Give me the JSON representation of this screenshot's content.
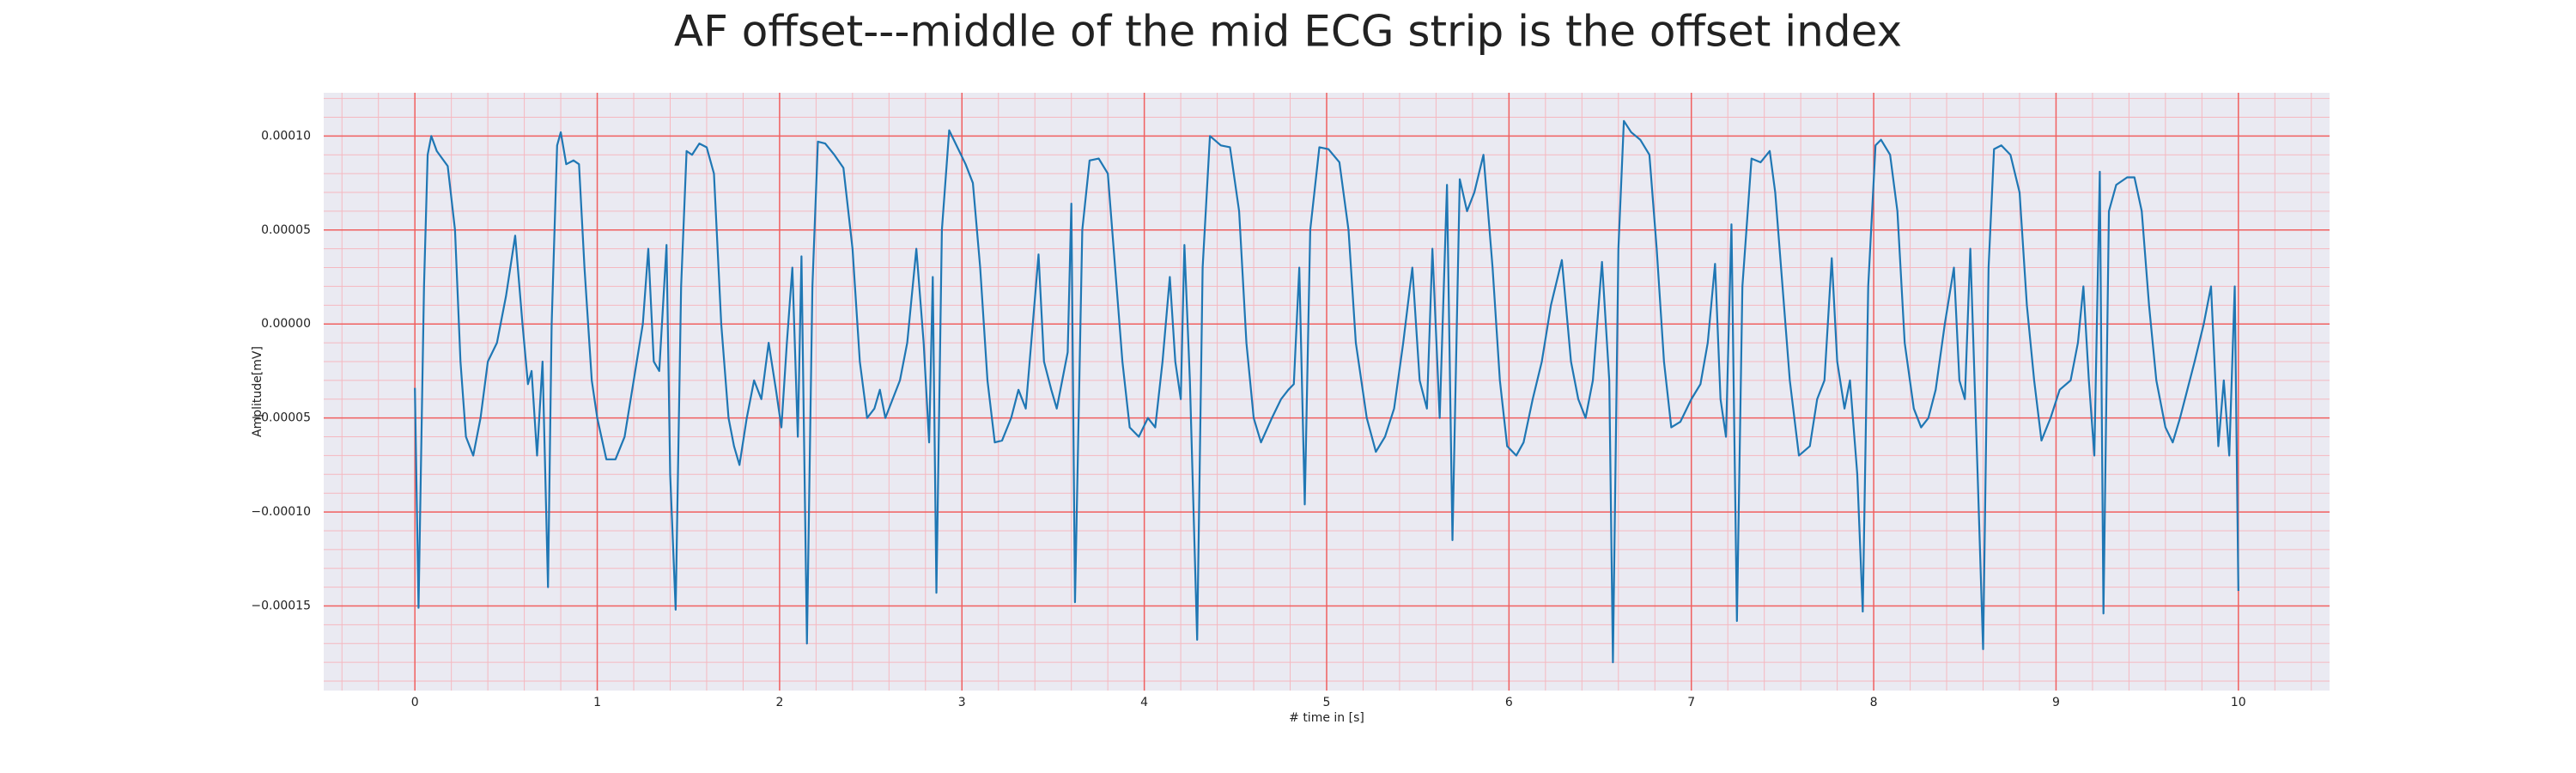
{
  "chart_data": {
    "type": "line",
    "title": "AF offset---middle of the mid ECG strip is the offset index",
    "xlabel": "# time in [s]",
    "ylabel": "Amplitude[mV]",
    "color": "#1f77b4",
    "grid": true,
    "minor_grid": true,
    "xlim": [
      -0.5,
      10.5
    ],
    "ylim": [
      -0.000195,
      0.000123
    ],
    "xticks": [
      0,
      1,
      2,
      3,
      4,
      5,
      6,
      7,
      8,
      9,
      10
    ],
    "yticks": [
      {
        "value": -0.00015,
        "label": "−0.00015"
      },
      {
        "value": -0.0001,
        "label": "−0.00010"
      },
      {
        "value": -5e-05,
        "label": "−0.00005"
      },
      {
        "value": 0,
        "label": "0.00000"
      },
      {
        "value": 5e-05,
        "label": "0.00005"
      },
      {
        "value": 0.0001,
        "label": "0.00010"
      }
    ],
    "x": [
      0,
      0.02,
      0.05,
      0.07,
      0.09,
      0.12,
      0.15,
      0.18,
      0.22,
      0.25,
      0.28,
      0.32,
      0.36,
      0.4,
      0.45,
      0.5,
      0.55,
      0.59,
      0.62,
      0.64,
      0.67,
      0.7,
      0.73,
      0.75,
      0.78,
      0.8,
      0.83,
      0.87,
      0.9,
      0.93,
      0.97,
      1.0,
      1.05,
      1.1,
      1.15,
      1.2,
      1.25,
      1.28,
      1.31,
      1.34,
      1.38,
      1.4,
      1.43,
      1.46,
      1.49,
      1.52,
      1.56,
      1.6,
      1.64,
      1.68,
      1.72,
      1.75,
      1.78,
      1.82,
      1.86,
      1.9,
      1.94,
      1.98,
      2.01,
      2.04,
      2.07,
      2.1,
      2.12,
      2.15,
      2.18,
      2.21,
      2.25,
      2.3,
      2.35,
      2.4,
      2.44,
      2.48,
      2.52,
      2.55,
      2.58,
      2.62,
      2.66,
      2.7,
      2.75,
      2.79,
      2.82,
      2.84,
      2.86,
      2.89,
      2.93,
      2.97,
      3.02,
      3.06,
      3.1,
      3.14,
      3.18,
      3.22,
      3.27,
      3.31,
      3.35,
      3.38,
      3.42,
      3.45,
      3.49,
      3.52,
      3.55,
      3.58,
      3.6,
      3.62,
      3.66,
      3.7,
      3.75,
      3.8,
      3.84,
      3.88,
      3.92,
      3.97,
      4.02,
      4.06,
      4.1,
      4.14,
      4.17,
      4.2,
      4.22,
      4.25,
      4.29,
      4.32,
      4.36,
      4.42,
      4.47,
      4.52,
      4.56,
      4.6,
      4.64,
      4.7,
      4.75,
      4.79,
      4.82,
      4.85,
      4.88,
      4.91,
      4.96,
      5.01,
      5.07,
      5.12,
      5.16,
      5.22,
      5.27,
      5.32,
      5.37,
      5.42,
      5.47,
      5.51,
      5.55,
      5.58,
      5.62,
      5.66,
      5.69,
      5.73,
      5.77,
      5.81,
      5.86,
      5.91,
      5.95,
      5.99,
      6.04,
      6.08,
      6.13,
      6.18,
      6.23,
      6.29,
      6.34,
      6.38,
      6.42,
      6.46,
      6.51,
      6.55,
      6.57,
      6.6,
      6.63,
      6.67,
      6.72,
      6.77,
      6.81,
      6.85,
      6.89,
      6.94,
      7.0,
      7.05,
      7.09,
      7.13,
      7.16,
      7.19,
      7.22,
      7.25,
      7.28,
      7.33,
      7.38,
      7.43,
      7.46,
      7.5,
      7.54,
      7.59,
      7.65,
      7.69,
      7.73,
      7.77,
      7.8,
      7.84,
      7.87,
      7.91,
      7.94,
      7.97,
      8.01,
      8.04,
      8.09,
      8.13,
      8.17,
      8.22,
      8.26,
      8.3,
      8.34,
      8.39,
      8.44,
      8.47,
      8.5,
      8.53,
      8.57,
      8.6,
      8.63,
      8.66,
      8.7,
      8.75,
      8.8,
      8.84,
      8.88,
      8.92,
      8.97,
      9.02,
      9.08,
      9.12,
      9.15,
      9.18,
      9.21,
      9.24,
      9.26,
      9.29,
      9.33,
      9.39,
      9.43,
      9.47,
      9.51,
      9.55,
      9.6,
      9.64,
      9.68,
      9.72,
      9.76,
      9.81,
      9.85,
      9.89,
      9.92,
      9.95,
      9.98,
      10.0
    ],
    "values": [
      -3.4e-05,
      -0.000151,
      2e-05,
      9e-05,
      0.0001,
      9.2e-05,
      8.8e-05,
      8.4e-05,
      5e-05,
      -2e-05,
      -6e-05,
      -7e-05,
      -5e-05,
      -2e-05,
      -1e-05,
      1.5e-05,
      4.7e-05,
      0,
      -3.2e-05,
      -2.5e-05,
      -7e-05,
      -2e-05,
      -0.00014,
      0,
      9.5e-05,
      0.000102,
      8.5e-05,
      8.7e-05,
      8.5e-05,
      3e-05,
      -3e-05,
      -5e-05,
      -7.2e-05,
      -7.2e-05,
      -6e-05,
      -3e-05,
      0,
      4e-05,
      -2e-05,
      -2.5e-05,
      4.2e-05,
      -8e-05,
      -0.000152,
      2e-05,
      9.2e-05,
      9e-05,
      9.6e-05,
      9.4e-05,
      8e-05,
      0,
      -5e-05,
      -6.5e-05,
      -7.5e-05,
      -5e-05,
      -3e-05,
      -4e-05,
      -1e-05,
      -3.5e-05,
      -5.5e-05,
      -1e-05,
      3e-05,
      -6e-05,
      3.6e-05,
      -0.00017,
      2e-05,
      9.7e-05,
      9.6e-05,
      9e-05,
      8.3e-05,
      4e-05,
      -2e-05,
      -5e-05,
      -4.5e-05,
      -3.5e-05,
      -5e-05,
      -4e-05,
      -3e-05,
      -1e-05,
      4e-05,
      -1e-05,
      -6.3e-05,
      2.5e-05,
      -0.000143,
      5e-05,
      0.000103,
      9.5e-05,
      8.5e-05,
      7.5e-05,
      3e-05,
      -3e-05,
      -6.3e-05,
      -6.2e-05,
      -5e-05,
      -3.5e-05,
      -4.5e-05,
      -1e-05,
      3.7e-05,
      -2e-05,
      -3.5e-05,
      -4.5e-05,
      -3e-05,
      -1.5e-05,
      6.4e-05,
      -0.000148,
      5e-05,
      8.7e-05,
      8.8e-05,
      8e-05,
      3e-05,
      -2e-05,
      -5.5e-05,
      -6e-05,
      -5e-05,
      -5.5e-05,
      -2e-05,
      2.5e-05,
      -2e-05,
      -4e-05,
      4.2e-05,
      -3e-05,
      -0.000168,
      3e-05,
      0.0001,
      9.5e-05,
      9.4e-05,
      6e-05,
      -1e-05,
      -5e-05,
      -6.3e-05,
      -5e-05,
      -4e-05,
      -3.5e-05,
      -3.2e-05,
      3e-05,
      -9.6e-05,
      5e-05,
      9.4e-05,
      9.3e-05,
      8.6e-05,
      5e-05,
      -1e-05,
      -5e-05,
      -6.8e-05,
      -6e-05,
      -4.5e-05,
      -1e-05,
      3e-05,
      -3e-05,
      -4.5e-05,
      4e-05,
      -5e-05,
      7.4e-05,
      -0.000115,
      7.7e-05,
      6e-05,
      7e-05,
      9e-05,
      3e-05,
      -3e-05,
      -6.5e-05,
      -7e-05,
      -6.3e-05,
      -4e-05,
      -2e-05,
      1e-05,
      3.4e-05,
      -2e-05,
      -4e-05,
      -5e-05,
      -3e-05,
      3.3e-05,
      -3e-05,
      -0.00018,
      4e-05,
      0.000108,
      0.000102,
      9.8e-05,
      9e-05,
      4e-05,
      -2e-05,
      -5.5e-05,
      -5.2e-05,
      -4e-05,
      -3.2e-05,
      -1e-05,
      3.2e-05,
      -4e-05,
      -6e-05,
      5.3e-05,
      -0.000158,
      2e-05,
      8.8e-05,
      8.6e-05,
      9.2e-05,
      7e-05,
      2e-05,
      -3e-05,
      -7e-05,
      -6.5e-05,
      -4e-05,
      -3e-05,
      3.5e-05,
      -2e-05,
      -4.5e-05,
      -3e-05,
      -8e-05,
      -0.000153,
      2e-05,
      9.5e-05,
      9.8e-05,
      9e-05,
      6e-05,
      -1e-05,
      -4.5e-05,
      -5.5e-05,
      -5e-05,
      -3.5e-05,
      0,
      3e-05,
      -3e-05,
      -4e-05,
      4e-05,
      -8e-05,
      -0.000173,
      3e-05,
      9.3e-05,
      9.5e-05,
      9e-05,
      7e-05,
      1e-05,
      -3e-05,
      -6.2e-05,
      -5e-05,
      -3.5e-05,
      -3e-05,
      -1e-05,
      2e-05,
      -3e-05,
      -7e-05,
      8.1e-05,
      -0.000154,
      6e-05,
      7.4e-05,
      7.8e-05,
      7.8e-05,
      6e-05,
      1e-05,
      -3e-05,
      -5.5e-05,
      -6.3e-05,
      -5e-05,
      -3.5e-05,
      -2e-05,
      0,
      2e-05,
      -6.5e-05,
      -3e-05,
      -7e-05,
      2e-05,
      -0.000142
    ]
  }
}
